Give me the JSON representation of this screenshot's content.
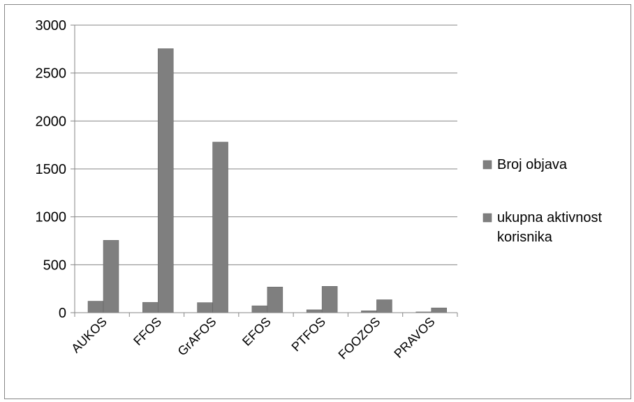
{
  "chart_data": {
    "type": "bar",
    "categories": [
      "AUKOS",
      "FFOS",
      "GrAFOS",
      "EFOS",
      "PTFOS",
      "FOOZOS",
      "PRAVOS"
    ],
    "series": [
      {
        "name": "Broj objava",
        "values": [
          120,
          108,
          105,
          72,
          30,
          20,
          8
        ],
        "color": "#7f7f7f"
      },
      {
        "name": "ukupna aktivnost korisnika",
        "legend_lines": [
          "ukupna aktivnost",
          "korisnika"
        ],
        "values": [
          755,
          2755,
          1780,
          268,
          275,
          135,
          50
        ],
        "color": "#7f7f7f"
      }
    ],
    "yticks": [
      0,
      500,
      1000,
      1500,
      2000,
      2500,
      3000
    ],
    "ylim": [
      0,
      3000
    ],
    "grid": true,
    "legend_position": "right",
    "title": "",
    "xlabel": "",
    "ylabel": ""
  }
}
